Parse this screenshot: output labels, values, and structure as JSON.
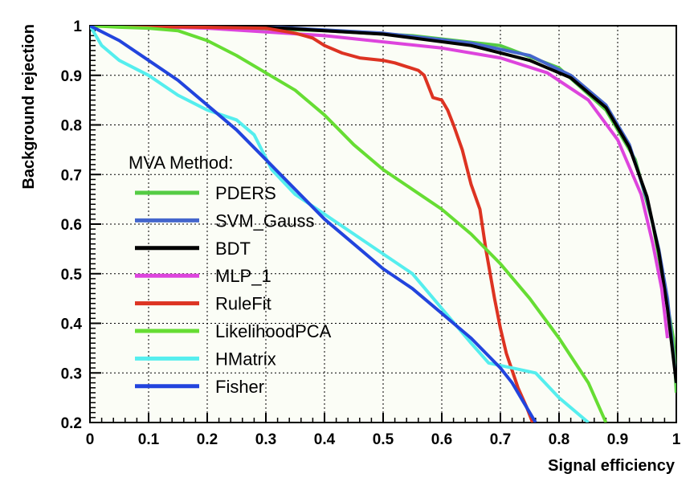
{
  "chart_data": {
    "type": "line",
    "xlabel": "Signal efficiency",
    "ylabel": "Background rejection",
    "xlim": [
      0,
      1
    ],
    "ylim": [
      0.2,
      1
    ],
    "xticks": [
      "0",
      "0.1",
      "0.2",
      "0.3",
      "0.4",
      "0.5",
      "0.6",
      "0.7",
      "0.8",
      "0.9",
      "1"
    ],
    "yticks": [
      "0.2",
      "0.3",
      "0.4",
      "0.5",
      "0.6",
      "0.7",
      "0.8",
      "0.9",
      "1"
    ],
    "grid": true,
    "legend": {
      "title": "MVA Method:",
      "placement": "center-left"
    },
    "series": [
      {
        "name": "PDERS",
        "color": "#55cc44",
        "points": [
          [
            0,
            1
          ],
          [
            0.2,
            0.998
          ],
          [
            0.4,
            0.99
          ],
          [
            0.55,
            0.98
          ],
          [
            0.7,
            0.96
          ],
          [
            0.8,
            0.915
          ],
          [
            0.88,
            0.83
          ],
          [
            0.93,
            0.73
          ],
          [
            0.96,
            0.6
          ],
          [
            0.98,
            0.47
          ],
          [
            0.995,
            0.37
          ],
          [
            1,
            0.26
          ]
        ]
      },
      {
        "name": "SVM_Gauss",
        "color": "#4466cc",
        "points": [
          [
            0,
            1
          ],
          [
            0.3,
            0.998
          ],
          [
            0.5,
            0.985
          ],
          [
            0.65,
            0.965
          ],
          [
            0.75,
            0.94
          ],
          [
            0.82,
            0.9
          ],
          [
            0.88,
            0.84
          ],
          [
            0.92,
            0.76
          ],
          [
            0.95,
            0.65
          ],
          [
            0.97,
            0.55
          ],
          [
            0.985,
            0.45
          ],
          [
            1,
            0.28
          ]
        ]
      },
      {
        "name": "BDT",
        "color": "#000000",
        "points": [
          [
            0,
            1
          ],
          [
            0.3,
            0.997
          ],
          [
            0.5,
            0.983
          ],
          [
            0.65,
            0.96
          ],
          [
            0.75,
            0.93
          ],
          [
            0.82,
            0.895
          ],
          [
            0.88,
            0.835
          ],
          [
            0.92,
            0.755
          ],
          [
            0.95,
            0.655
          ],
          [
            0.97,
            0.545
          ],
          [
            0.985,
            0.43
          ],
          [
            1,
            0.28
          ]
        ]
      },
      {
        "name": "MLP_1",
        "color": "#dd44dd",
        "points": [
          [
            0,
            1
          ],
          [
            0.2,
            0.995
          ],
          [
            0.4,
            0.98
          ],
          [
            0.6,
            0.955
          ],
          [
            0.7,
            0.935
          ],
          [
            0.78,
            0.905
          ],
          [
            0.85,
            0.85
          ],
          [
            0.9,
            0.77
          ],
          [
            0.94,
            0.66
          ],
          [
            0.96,
            0.56
          ],
          [
            0.975,
            0.47
          ],
          [
            0.985,
            0.37
          ]
        ]
      },
      {
        "name": "RuleFit",
        "color": "#dd3322",
        "points": [
          [
            0,
            1
          ],
          [
            0.3,
            0.995
          ],
          [
            0.35,
            0.985
          ],
          [
            0.38,
            0.975
          ],
          [
            0.4,
            0.96
          ],
          [
            0.43,
            0.945
          ],
          [
            0.46,
            0.935
          ],
          [
            0.5,
            0.93
          ],
          [
            0.52,
            0.925
          ],
          [
            0.56,
            0.91
          ],
          [
            0.57,
            0.9
          ],
          [
            0.585,
            0.855
          ],
          [
            0.6,
            0.85
          ],
          [
            0.61,
            0.83
          ],
          [
            0.62,
            0.8
          ],
          [
            0.635,
            0.75
          ],
          [
            0.65,
            0.68
          ],
          [
            0.665,
            0.63
          ],
          [
            0.675,
            0.55
          ],
          [
            0.69,
            0.45
          ],
          [
            0.7,
            0.39
          ],
          [
            0.71,
            0.34
          ],
          [
            0.73,
            0.27
          ],
          [
            0.745,
            0.23
          ],
          [
            0.755,
            0.2
          ]
        ]
      },
      {
        "name": "LikelihoodPCA",
        "color": "#66dd33",
        "points": [
          [
            0,
            1
          ],
          [
            0.05,
            0.997
          ],
          [
            0.1,
            0.995
          ],
          [
            0.15,
            0.99
          ],
          [
            0.2,
            0.97
          ],
          [
            0.25,
            0.94
          ],
          [
            0.3,
            0.905
          ],
          [
            0.35,
            0.87
          ],
          [
            0.4,
            0.82
          ],
          [
            0.45,
            0.76
          ],
          [
            0.5,
            0.71
          ],
          [
            0.55,
            0.67
          ],
          [
            0.6,
            0.63
          ],
          [
            0.65,
            0.58
          ],
          [
            0.7,
            0.52
          ],
          [
            0.75,
            0.45
          ],
          [
            0.8,
            0.37
          ],
          [
            0.85,
            0.28
          ],
          [
            0.88,
            0.2
          ]
        ]
      },
      {
        "name": "HMatrix",
        "color": "#55eeee",
        "points": [
          [
            0,
            1
          ],
          [
            0.02,
            0.96
          ],
          [
            0.05,
            0.93
          ],
          [
            0.1,
            0.9
          ],
          [
            0.15,
            0.86
          ],
          [
            0.2,
            0.83
          ],
          [
            0.25,
            0.81
          ],
          [
            0.28,
            0.78
          ],
          [
            0.31,
            0.71
          ],
          [
            0.35,
            0.66
          ],
          [
            0.4,
            0.62
          ],
          [
            0.45,
            0.58
          ],
          [
            0.5,
            0.54
          ],
          [
            0.55,
            0.5
          ],
          [
            0.6,
            0.43
          ],
          [
            0.65,
            0.36
          ],
          [
            0.68,
            0.32
          ],
          [
            0.72,
            0.31
          ],
          [
            0.76,
            0.3
          ],
          [
            0.8,
            0.25
          ],
          [
            0.85,
            0.2
          ]
        ]
      },
      {
        "name": "Fisher",
        "color": "#2244dd",
        "points": [
          [
            0,
            1
          ],
          [
            0.05,
            0.97
          ],
          [
            0.1,
            0.93
          ],
          [
            0.15,
            0.89
          ],
          [
            0.2,
            0.84
          ],
          [
            0.25,
            0.79
          ],
          [
            0.3,
            0.73
          ],
          [
            0.35,
            0.67
          ],
          [
            0.4,
            0.61
          ],
          [
            0.45,
            0.56
          ],
          [
            0.5,
            0.51
          ],
          [
            0.55,
            0.47
          ],
          [
            0.6,
            0.42
          ],
          [
            0.65,
            0.37
          ],
          [
            0.7,
            0.31
          ],
          [
            0.72,
            0.28
          ],
          [
            0.74,
            0.24
          ],
          [
            0.76,
            0.2
          ]
        ]
      }
    ]
  }
}
